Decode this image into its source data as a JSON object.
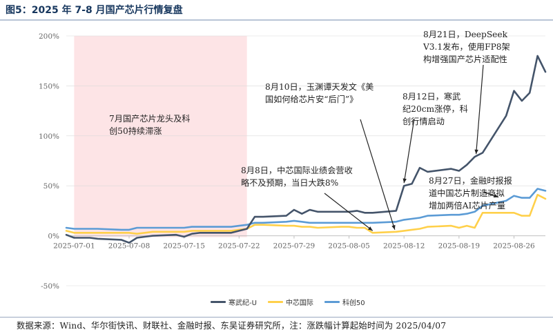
{
  "header": {
    "title": "图5：2025 年 7-8 月国产芯片行情复盘"
  },
  "footer": {
    "source": "数据来源：Wind、华尔街快讯、财联社、金融时报、东吴证券研究所，注：涨跌幅计算起始时间为 2025/04/07"
  },
  "annotations": {
    "shaded": "7月国产芯片龙头及科\n创50持续滞涨",
    "aug8": "8月8日，中芯国际业绩会营收\n略不及预期，当日大跌8%",
    "aug10": "8月10日，玉渊谭天发文《美\n国如何给芯片安“后门”》",
    "aug12": "8月12日，寒武\n纪20cm涨停，科\n创行情启动",
    "aug21": "8月21日，DeepSeek\nV3.1发布，使用FP8架\n构增强国产芯片适配性",
    "aug27": "8月27日，金融时报报\n道中国芯片制造商拟\n增加两倍AI芯片产量"
  },
  "colors": {
    "cambricon": "#44546a",
    "smic": "#ffd04a",
    "star50": "#5b9bd5",
    "shade": "#fde4e6",
    "grid": "#d9d9d9",
    "axis_text": "#666666"
  },
  "chart_data": {
    "type": "line",
    "title": "2025 年 7-8 月国产芯片行情复盘",
    "xlabel": "",
    "ylabel": "",
    "ylim": [
      -50,
      200
    ],
    "yticks": [
      -50,
      0,
      50,
      100,
      150,
      200
    ],
    "ytick_labels": [
      "-50%",
      "0%",
      "50%",
      "100%",
      "150%",
      "200%"
    ],
    "x_tick_labels": [
      "2025-07-01",
      "2025-07-08",
      "2025-07-15",
      "2025-07-22",
      "2025-07-29",
      "2025-08-05",
      "2025-08-12",
      "2025-08-19",
      "2025-08-26"
    ],
    "x_range": [
      "2025-06-30",
      "2025-08-29"
    ],
    "shaded_range": [
      "2025-07-01",
      "2025-07-23"
    ],
    "grid": true,
    "legend_position": "bottom-center",
    "x": [
      "2025-06-30",
      "2025-07-01",
      "2025-07-02",
      "2025-07-03",
      "2025-07-04",
      "2025-07-07",
      "2025-07-08",
      "2025-07-09",
      "2025-07-10",
      "2025-07-11",
      "2025-07-14",
      "2025-07-15",
      "2025-07-16",
      "2025-07-17",
      "2025-07-18",
      "2025-07-21",
      "2025-07-22",
      "2025-07-23",
      "2025-07-24",
      "2025-07-25",
      "2025-07-28",
      "2025-07-29",
      "2025-07-30",
      "2025-07-31",
      "2025-08-01",
      "2025-08-04",
      "2025-08-05",
      "2025-08-06",
      "2025-08-07",
      "2025-08-08",
      "2025-08-11",
      "2025-08-12",
      "2025-08-13",
      "2025-08-14",
      "2025-08-15",
      "2025-08-18",
      "2025-08-19",
      "2025-08-20",
      "2025-08-21",
      "2025-08-22",
      "2025-08-25",
      "2025-08-26",
      "2025-08-27",
      "2025-08-28",
      "2025-08-29"
    ],
    "series": [
      {
        "name": "寒武纪-U",
        "key": "cambricon",
        "values": [
          1,
          -2,
          -2,
          -2,
          -3,
          -4,
          -7,
          -2,
          -1,
          0,
          1,
          -1,
          2,
          3,
          3,
          3,
          5,
          7,
          19,
          19,
          20,
          26,
          22,
          26,
          24,
          24,
          24,
          25,
          23,
          23,
          25,
          50,
          52,
          68,
          64,
          67,
          65,
          71,
          79,
          83,
          120,
          145,
          135,
          143,
          180
        ]
      },
      {
        "name": "中芯国际",
        "key": "smic",
        "values": [
          5,
          3,
          3,
          3,
          3,
          3,
          3,
          2,
          3,
          4,
          4,
          4,
          5,
          5,
          5,
          5,
          6,
          7,
          11,
          11,
          10,
          10,
          9,
          9,
          8,
          9,
          9,
          8,
          8,
          3,
          4,
          5,
          6,
          7,
          9,
          10,
          8,
          10,
          8,
          23,
          23,
          23,
          20,
          20,
          41
        ]
      },
      {
        "name": "科创50",
        "key": "star50",
        "values": [
          8,
          7,
          7,
          7,
          7,
          6,
          6,
          8,
          8,
          8,
          8,
          8,
          9,
          9,
          9,
          9,
          10,
          11,
          13,
          13,
          14,
          15,
          14,
          13,
          13,
          13,
          13,
          13,
          13,
          13,
          14,
          16,
          17,
          18,
          20,
          21,
          21,
          22,
          24,
          30,
          35,
          40,
          38,
          38,
          47
        ]
      }
    ],
    "extra_points": {
      "x": [
        "2025-08-30"
      ],
      "cambricon": [
        164
      ],
      "smic": [
        37
      ],
      "star50": [
        45
      ]
    }
  }
}
